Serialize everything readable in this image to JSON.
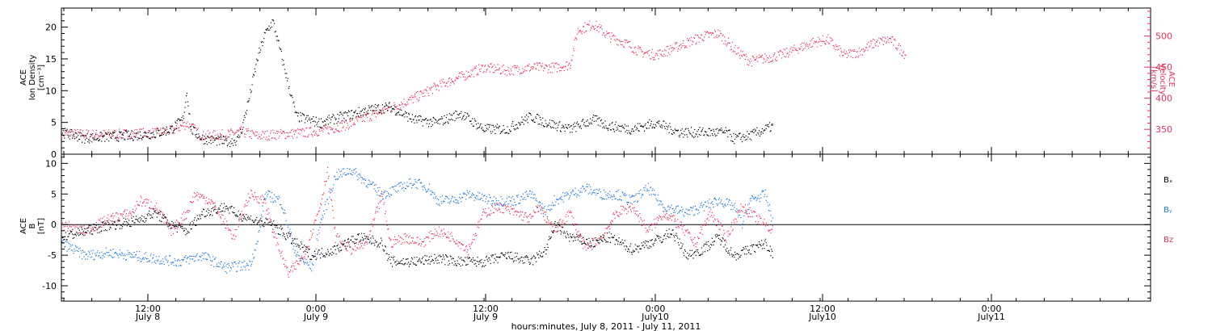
{
  "colors": {
    "black": "#000000",
    "pink": "#e6325a",
    "blue": "#1e78dc"
  },
  "chart_data": [
    {
      "type": "scatter",
      "panel": "top",
      "ylabel_left": [
        "ACE",
        "Ion Density",
        "[cm⁻³]"
      ],
      "ylabel_right": [
        "ACE",
        "Velocity",
        "[km/s]"
      ],
      "ylim_left": [
        0,
        23
      ],
      "yticks_left": [
        0,
        5,
        10,
        15,
        20
      ],
      "ylim_right": [
        310,
        545
      ],
      "yticks_right": [
        350,
        400,
        450,
        500
      ],
      "series": [
        {
          "color": "#000000",
          "axis": "left",
          "points": [
            [
              0,
              3.5
            ],
            [
              3,
              2.6
            ],
            [
              6,
              2.8
            ],
            [
              9,
              3.0
            ],
            [
              12,
              3.3
            ],
            [
              14,
              4.0
            ],
            [
              15.5,
              5.5
            ],
            [
              16,
              10
            ],
            [
              16.5,
              4
            ],
            [
              18,
              2.5
            ],
            [
              21,
              2.0
            ],
            [
              22.5,
              2.3
            ],
            [
              23,
              4
            ],
            [
              24,
              9
            ],
            [
              25,
              15
            ],
            [
              26,
              19
            ],
            [
              27,
              21
            ],
            [
              28,
              16
            ],
            [
              29,
              11
            ],
            [
              30,
              6
            ],
            [
              33,
              5
            ],
            [
              36,
              6
            ],
            [
              39,
              7
            ],
            [
              42,
              7.5
            ],
            [
              45,
              5.5
            ],
            [
              48,
              5
            ],
            [
              51,
              6.5
            ],
            [
              54,
              4
            ],
            [
              57,
              4
            ],
            [
              60,
              6
            ],
            [
              62,
              5
            ],
            [
              65,
              4
            ],
            [
              68,
              5.5
            ],
            [
              70,
              4.5
            ],
            [
              73,
              4
            ],
            [
              76,
              5
            ],
            [
              79,
              3.5
            ],
            [
              82,
              3.5
            ],
            [
              85,
              3.5
            ],
            [
              86,
              2.5
            ],
            [
              88,
              3
            ],
            [
              90,
              4
            ],
            [
              91,
              4.5
            ]
          ]
        },
        {
          "color": "#e6325a",
          "axis": "right",
          "points": [
            [
              0,
              345
            ],
            [
              4,
              342
            ],
            [
              8,
              343
            ],
            [
              12,
              345
            ],
            [
              14,
              348
            ],
            [
              16,
              360
            ],
            [
              18,
              340
            ],
            [
              21,
              342
            ],
            [
              23,
              347
            ],
            [
              25,
              340
            ],
            [
              28,
              343
            ],
            [
              31,
              345
            ],
            [
              34,
              350
            ],
            [
              37,
              360
            ],
            [
              40,
              375
            ],
            [
              43,
              390
            ],
            [
              45,
              400
            ],
            [
              48,
              420
            ],
            [
              51,
              435
            ],
            [
              54,
              450
            ],
            [
              57,
              445
            ],
            [
              60,
              450
            ],
            [
              63,
              450
            ],
            [
              65,
              455
            ],
            [
              66,
              510
            ],
            [
              68,
              520
            ],
            [
              70,
              500
            ],
            [
              72,
              490
            ],
            [
              74,
              475
            ],
            [
              76,
              470
            ],
            [
              78,
              480
            ],
            [
              80,
              490
            ],
            [
              82,
              500
            ],
            [
              84,
              505
            ],
            [
              86,
              480
            ],
            [
              88,
              460
            ],
            [
              90,
              465
            ],
            [
              92,
              470
            ],
            [
              94,
              480
            ],
            [
              96,
              490
            ],
            [
              98,
              495
            ],
            [
              100,
              470
            ],
            [
              102,
              475
            ],
            [
              104,
              490
            ],
            [
              106,
              495
            ],
            [
              108,
              470
            ]
          ]
        }
      ]
    },
    {
      "type": "scatter",
      "panel": "bottom",
      "ylabel": [
        "ACE",
        "B",
        "[nT]"
      ],
      "ylim": [
        -12.5,
        11.5
      ],
      "yticks": [
        -10,
        -5,
        0,
        5,
        10
      ],
      "legend": [
        "Bₓ",
        "Bᵧ",
        "B_z"
      ],
      "legend_labels": [
        "Bₓ",
        "Bᵧ",
        "Bz"
      ],
      "series": [
        {
          "color": "#000000",
          "points": [
            [
              0,
              -2
            ],
            [
              3,
              -1
            ],
            [
              6,
              0
            ],
            [
              9,
              0.5
            ],
            [
              12,
              2
            ],
            [
              14,
              0
            ],
            [
              16,
              -1
            ],
            [
              18,
              2
            ],
            [
              21,
              3
            ],
            [
              22,
              2
            ],
            [
              24,
              1
            ],
            [
              27,
              0
            ],
            [
              30,
              -3
            ],
            [
              32,
              -5
            ],
            [
              35,
              -4
            ],
            [
              38,
              -2
            ],
            [
              41,
              -3
            ],
            [
              42,
              -6
            ],
            [
              45,
              -6
            ],
            [
              48,
              -5.5
            ],
            [
              51,
              -6
            ],
            [
              54,
              -6
            ],
            [
              57,
              -5
            ],
            [
              60,
              -6
            ],
            [
              62,
              -4
            ],
            [
              63,
              0
            ],
            [
              65,
              -2
            ],
            [
              68,
              -3
            ],
            [
              70,
              -2
            ],
            [
              73,
              -4
            ],
            [
              75,
              -3
            ],
            [
              77,
              -2
            ],
            [
              78,
              -1
            ],
            [
              80,
              -5
            ],
            [
              82,
              -4
            ],
            [
              84,
              -2
            ],
            [
              86,
              -5
            ],
            [
              88,
              -4
            ],
            [
              90,
              -3
            ],
            [
              91,
              -5
            ]
          ]
        },
        {
          "color": "#1e78dc",
          "points": [
            [
              0,
              -3
            ],
            [
              3,
              -5
            ],
            [
              6,
              -4.5
            ],
            [
              9,
              -5
            ],
            [
              12,
              -5.5
            ],
            [
              15,
              -6
            ],
            [
              18,
              -5
            ],
            [
              21,
              -7
            ],
            [
              24,
              -6.5
            ],
            [
              25,
              -3
            ],
            [
              26,
              5
            ],
            [
              28,
              4
            ],
            [
              30,
              -5
            ],
            [
              32,
              -7
            ],
            [
              33,
              0
            ],
            [
              35,
              8
            ],
            [
              37,
              9
            ],
            [
              39,
              7
            ],
            [
              41,
              5
            ],
            [
              43,
              6
            ],
            [
              45,
              7
            ],
            [
              47,
              6
            ],
            [
              48,
              4
            ],
            [
              50,
              4
            ],
            [
              52,
              5
            ],
            [
              55,
              4
            ],
            [
              58,
              4
            ],
            [
              60,
              5
            ],
            [
              62,
              2
            ],
            [
              63,
              4
            ],
            [
              65,
              5
            ],
            [
              67,
              6
            ],
            [
              69,
              5
            ],
            [
              71,
              5
            ],
            [
              73,
              4
            ],
            [
              75,
              6
            ],
            [
              77,
              3
            ],
            [
              80,
              2
            ],
            [
              82,
              3
            ],
            [
              84,
              4
            ],
            [
              86,
              3
            ],
            [
              87,
              0
            ],
            [
              88,
              4
            ],
            [
              90,
              5
            ],
            [
              91,
              0
            ]
          ]
        },
        {
          "color": "#e6325a",
          "points": [
            [
              0,
              0
            ],
            [
              3,
              -1
            ],
            [
              6,
              1
            ],
            [
              9,
              2
            ],
            [
              10,
              4
            ],
            [
              12,
              3
            ],
            [
              14,
              -1
            ],
            [
              16,
              2
            ],
            [
              17,
              5
            ],
            [
              19,
              4
            ],
            [
              21,
              0
            ],
            [
              22,
              -2
            ],
            [
              24,
              5
            ],
            [
              26,
              4
            ],
            [
              27,
              -1
            ],
            [
              29,
              -8
            ],
            [
              31,
              -5
            ],
            [
              33,
              3
            ],
            [
              34,
              9
            ],
            [
              35,
              -2
            ],
            [
              37,
              -4
            ],
            [
              39,
              -3
            ],
            [
              41,
              5
            ],
            [
              42,
              -3
            ],
            [
              44,
              -2
            ],
            [
              46,
              -3
            ],
            [
              48,
              -1
            ],
            [
              50,
              -2
            ],
            [
              52,
              -4
            ],
            [
              54,
              2
            ],
            [
              56,
              3
            ],
            [
              58,
              2
            ],
            [
              60,
              1
            ],
            [
              61,
              3
            ],
            [
              63,
              -1
            ],
            [
              65,
              2
            ],
            [
              67,
              -4
            ],
            [
              69,
              -2
            ],
            [
              71,
              2
            ],
            [
              73,
              3
            ],
            [
              75,
              -1
            ],
            [
              77,
              2
            ],
            [
              79,
              0
            ],
            [
              81,
              -3
            ],
            [
              83,
              2
            ],
            [
              85,
              -2
            ],
            [
              87,
              3
            ],
            [
              89,
              1
            ],
            [
              91,
              -1
            ]
          ]
        }
      ]
    }
  ],
  "xaxis": {
    "ticks": [
      {
        "time": "12:00",
        "day": "July 8"
      },
      {
        "time": "0:00",
        "day": "July 9"
      },
      {
        "time": "12:00",
        "day": "July 9"
      },
      {
        "time": "0:00",
        "day": "July10"
      },
      {
        "time": "12:00",
        "day": "July10"
      },
      {
        "time": "0:00",
        "day": "July11"
      }
    ],
    "title": "hours:minutes, July  8, 2011 - July 11, 2011"
  }
}
